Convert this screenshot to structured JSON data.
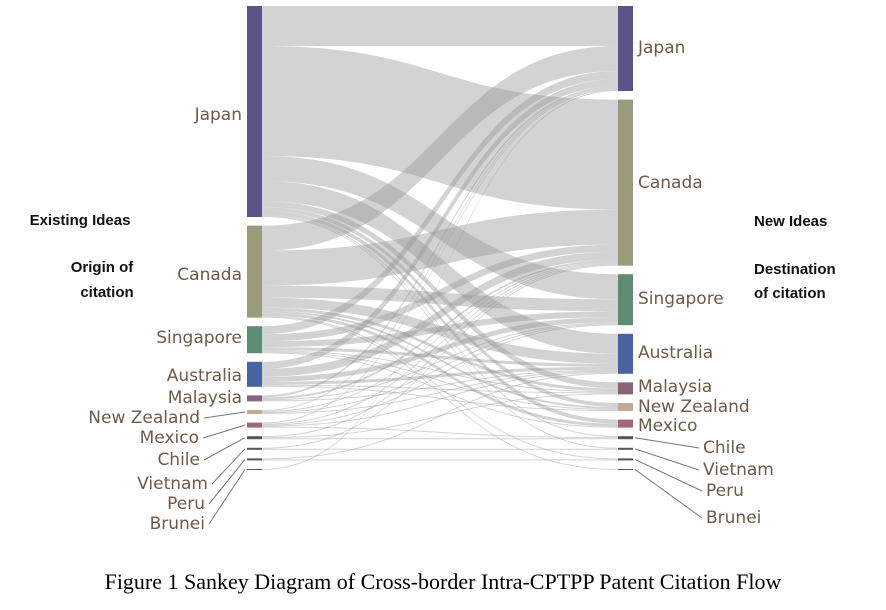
{
  "chart_data": {
    "type": "sankey",
    "title": "Figure 1 Sankey Diagram of Cross-border Intra-CPTPP Patent Citation Flow",
    "left_heading": "Existing Ideas",
    "left_subheading": [
      "Origin of",
      "citation"
    ],
    "right_heading": "New Ideas",
    "right_subheading": [
      "Destination",
      "of citation"
    ],
    "link_color": "rgba(150,150,150,0.42)",
    "nodes": [
      {
        "name": "Japan",
        "color": "#5c5488"
      },
      {
        "name": "Canada",
        "color": "#9a9a7c"
      },
      {
        "name": "Singapore",
        "color": "#5e8c72"
      },
      {
        "name": "Australia",
        "color": "#4a62a0"
      },
      {
        "name": "Malaysia",
        "color": "#8a6478"
      },
      {
        "name": "New Zealand",
        "color": "#c4a898"
      },
      {
        "name": "Mexico",
        "color": "#a06878"
      },
      {
        "name": "Chile",
        "color": "#555555"
      },
      {
        "name": "Vietnam",
        "color": "#555555"
      },
      {
        "name": "Peru",
        "color": "#555555"
      },
      {
        "name": "Brunei",
        "color": "#555555"
      }
    ],
    "links": [
      {
        "source": "Japan",
        "target": "Japan",
        "value": 40
      },
      {
        "source": "Japan",
        "target": "Canada",
        "value": 110
      },
      {
        "source": "Japan",
        "target": "Singapore",
        "value": 25
      },
      {
        "source": "Japan",
        "target": "Australia",
        "value": 20
      },
      {
        "source": "Japan",
        "target": "Malaysia",
        "value": 6
      },
      {
        "source": "Japan",
        "target": "New Zealand",
        "value": 4
      },
      {
        "source": "Japan",
        "target": "Mexico",
        "value": 4
      },
      {
        "source": "Japan",
        "target": "Chile",
        "value": 1
      },
      {
        "source": "Japan",
        "target": "Vietnam",
        "value": 1
      },
      {
        "source": "Canada",
        "target": "Japan",
        "value": 25
      },
      {
        "source": "Canada",
        "target": "Canada",
        "value": 35
      },
      {
        "source": "Canada",
        "target": "Singapore",
        "value": 12
      },
      {
        "source": "Canada",
        "target": "Australia",
        "value": 10
      },
      {
        "source": "Canada",
        "target": "Malaysia",
        "value": 3
      },
      {
        "source": "Canada",
        "target": "New Zealand",
        "value": 2
      },
      {
        "source": "Canada",
        "target": "Mexico",
        "value": 3
      },
      {
        "source": "Canada",
        "target": "Peru",
        "value": 1
      },
      {
        "source": "Canada",
        "target": "Brunei",
        "value": 1
      },
      {
        "source": "Singapore",
        "target": "Japan",
        "value": 8
      },
      {
        "source": "Singapore",
        "target": "Canada",
        "value": 7
      },
      {
        "source": "Singapore",
        "target": "Singapore",
        "value": 6
      },
      {
        "source": "Singapore",
        "target": "Australia",
        "value": 3
      },
      {
        "source": "Singapore",
        "target": "Malaysia",
        "value": 1
      },
      {
        "source": "Singapore",
        "target": "New Zealand",
        "value": 1
      },
      {
        "source": "Singapore",
        "target": "Mexico",
        "value": 1
      },
      {
        "source": "Australia",
        "target": "Japan",
        "value": 7
      },
      {
        "source": "Australia",
        "target": "Canada",
        "value": 8
      },
      {
        "source": "Australia",
        "target": "Singapore",
        "value": 5
      },
      {
        "source": "Australia",
        "target": "Australia",
        "value": 3
      },
      {
        "source": "Australia",
        "target": "Malaysia",
        "value": 1
      },
      {
        "source": "Australia",
        "target": "New Zealand",
        "value": 1
      },
      {
        "source": "Malaysia",
        "target": "Japan",
        "value": 2
      },
      {
        "source": "Malaysia",
        "target": "Canada",
        "value": 2
      },
      {
        "source": "Malaysia",
        "target": "Singapore",
        "value": 1
      },
      {
        "source": "Malaysia",
        "target": "Australia",
        "value": 1
      },
      {
        "source": "New Zealand",
        "target": "Japan",
        "value": 1
      },
      {
        "source": "New Zealand",
        "target": "Canada",
        "value": 1
      },
      {
        "source": "New Zealand",
        "target": "Singapore",
        "value": 1
      },
      {
        "source": "New Zealand",
        "target": "Australia",
        "value": 1
      },
      {
        "source": "Mexico",
        "target": "Japan",
        "value": 1
      },
      {
        "source": "Mexico",
        "target": "Canada",
        "value": 1
      },
      {
        "source": "Mexico",
        "target": "Singapore",
        "value": 1
      },
      {
        "source": "Mexico",
        "target": "Australia",
        "value": 1
      },
      {
        "source": "Mexico",
        "target": "Chile",
        "value": 1
      },
      {
        "source": "Chile",
        "target": "Canada",
        "value": 1
      },
      {
        "source": "Chile",
        "target": "Malaysia",
        "value": 1
      },
      {
        "source": "Chile",
        "target": "Chile",
        "value": 1
      },
      {
        "source": "Vietnam",
        "target": "Canada",
        "value": 1
      },
      {
        "source": "Vietnam",
        "target": "Vietnam",
        "value": 1
      },
      {
        "source": "Peru",
        "target": "Australia",
        "value": 1
      },
      {
        "source": "Peru",
        "target": "Peru",
        "value": 1
      },
      {
        "source": "Brunei",
        "target": "Japan",
        "value": 1
      }
    ]
  }
}
